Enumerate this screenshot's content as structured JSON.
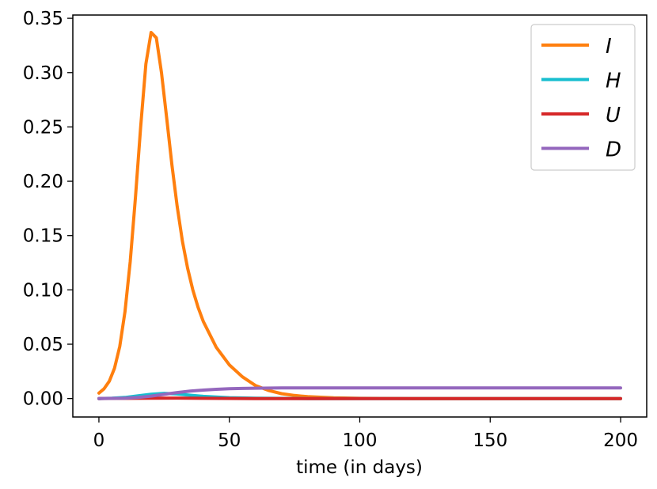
{
  "chart_data": {
    "type": "line",
    "title": "",
    "xlabel": "time (in days)",
    "ylabel": "",
    "xlim": [
      -10,
      210
    ],
    "ylim": [
      -0.017,
      0.353
    ],
    "xticks": [
      0,
      50,
      100,
      150,
      200
    ],
    "xtick_labels": [
      "0",
      "50",
      "100",
      "150",
      "200"
    ],
    "yticks": [
      0.0,
      0.05,
      0.1,
      0.15,
      0.2,
      0.25,
      0.3,
      0.35
    ],
    "ytick_labels": [
      "0.00",
      "0.05",
      "0.10",
      "0.15",
      "0.20",
      "0.25",
      "0.30",
      "0.35"
    ],
    "grid": false,
    "legend_position": "top-right",
    "series": [
      {
        "name": "I",
        "color": "#ff7f0e",
        "points": [
          [
            0,
            0.005
          ],
          [
            2,
            0.009
          ],
          [
            4,
            0.016
          ],
          [
            6,
            0.028
          ],
          [
            8,
            0.048
          ],
          [
            10,
            0.08
          ],
          [
            12,
            0.126
          ],
          [
            14,
            0.185
          ],
          [
            16,
            0.25
          ],
          [
            18,
            0.308
          ],
          [
            20,
            0.337
          ],
          [
            22,
            0.332
          ],
          [
            24,
            0.3
          ],
          [
            26,
            0.258
          ],
          [
            28,
            0.215
          ],
          [
            30,
            0.177
          ],
          [
            32,
            0.145
          ],
          [
            34,
            0.12
          ],
          [
            36,
            0.1
          ],
          [
            38,
            0.084
          ],
          [
            40,
            0.071
          ],
          [
            45,
            0.047
          ],
          [
            50,
            0.031
          ],
          [
            55,
            0.02
          ],
          [
            60,
            0.012
          ],
          [
            65,
            0.0075
          ],
          [
            70,
            0.0045
          ],
          [
            75,
            0.0028
          ],
          [
            80,
            0.0017
          ],
          [
            90,
            0.0006
          ],
          [
            100,
            0.0002
          ],
          [
            120,
            0.0
          ],
          [
            150,
            0.0
          ],
          [
            200,
            0.0
          ]
        ]
      },
      {
        "name": "H",
        "color": "#17becf",
        "points": [
          [
            0,
            0.0
          ],
          [
            5,
            0.0003
          ],
          [
            10,
            0.001
          ],
          [
            15,
            0.0025
          ],
          [
            20,
            0.004
          ],
          [
            25,
            0.0048
          ],
          [
            30,
            0.0042
          ],
          [
            35,
            0.003
          ],
          [
            40,
            0.002
          ],
          [
            50,
            0.0008
          ],
          [
            60,
            0.0003
          ],
          [
            80,
            0.0
          ],
          [
            200,
            0.0
          ]
        ]
      },
      {
        "name": "U",
        "color": "#d62728",
        "points": [
          [
            0,
            0.0
          ],
          [
            20,
            0.0003
          ],
          [
            30,
            0.0004
          ],
          [
            40,
            0.0002
          ],
          [
            60,
            0.0
          ],
          [
            200,
            0.0
          ]
        ]
      },
      {
        "name": "D",
        "color": "#9467bd",
        "points": [
          [
            0,
            0.0
          ],
          [
            10,
            0.0003
          ],
          [
            15,
            0.001
          ],
          [
            20,
            0.0022
          ],
          [
            25,
            0.0038
          ],
          [
            30,
            0.0055
          ],
          [
            35,
            0.0068
          ],
          [
            40,
            0.0078
          ],
          [
            45,
            0.0085
          ],
          [
            50,
            0.009
          ],
          [
            55,
            0.0093
          ],
          [
            60,
            0.0095
          ],
          [
            70,
            0.0097
          ],
          [
            80,
            0.0098
          ],
          [
            100,
            0.0098
          ],
          [
            200,
            0.0098
          ]
        ]
      }
    ]
  }
}
